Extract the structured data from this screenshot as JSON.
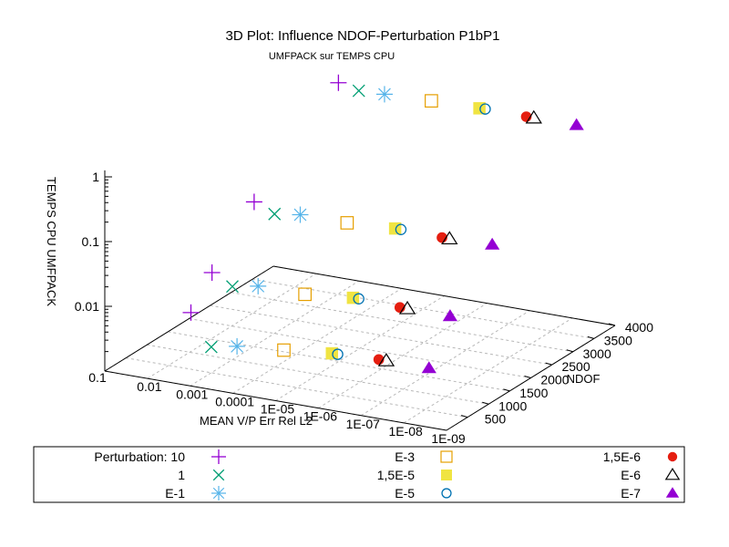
{
  "chart_data": {
    "type": "scatter",
    "title": "3D Plot: Influence NDOF-Perturbation P1bP1",
    "subtitle": "UMFPACK sur TEMPS CPU",
    "xlabel": "MEAN V/P Err Rel L2",
    "ylabel": "NDOF",
    "zlabel": "TEMPS CPU UMFPACK",
    "x_scale": "log",
    "x_ticks": [
      "0.1",
      "0.01",
      "0.001",
      "0.0001",
      "1E-05",
      "1E-06",
      "1E-07",
      "1E-08",
      "1E-09"
    ],
    "y_ticks": [
      "500",
      "1000",
      "1500",
      "2000",
      "2500",
      "3000",
      "3500",
      "4000"
    ],
    "z_scale": "log",
    "z_ticks": [
      "0.01",
      "0.1",
      "1"
    ],
    "legend_title": "Perturbation: 10",
    "grid": true,
    "legend_position": "bottom",
    "series": [
      {
        "name": "Perturbation: 10",
        "marker": "plus",
        "color": "#9400d3",
        "points": [
          {
            "x": 0.003,
            "ndof": 4000,
            "cpu": 1.02
          },
          {
            "x": 0.003,
            "ndof": 2000,
            "cpu": 0.095
          },
          {
            "x": 0.003,
            "ndof": 1000,
            "cpu": 0.0195
          },
          {
            "x": 0.003,
            "ndof": 500,
            "cpu": 0.0075
          }
        ]
      },
      {
        "name": "1",
        "marker": "cross",
        "color": "#009e73",
        "points": [
          {
            "x": 0.001,
            "ndof": 4000,
            "cpu": 0.87
          },
          {
            "x": 0.001,
            "ndof": 2000,
            "cpu": 0.07
          },
          {
            "x": 0.001,
            "ndof": 1000,
            "cpu": 0.0135
          },
          {
            "x": 0.001,
            "ndof": 500,
            "cpu": 0.0025
          }
        ]
      },
      {
        "name": "E-1",
        "marker": "star",
        "color": "#56b4e9",
        "points": [
          {
            "x": 0.00025,
            "ndof": 4000,
            "cpu": 0.9
          },
          {
            "x": 0.00025,
            "ndof": 2000,
            "cpu": 0.08
          },
          {
            "x": 0.00025,
            "ndof": 1000,
            "cpu": 0.016
          },
          {
            "x": 0.00025,
            "ndof": 500,
            "cpu": 0.003
          }
        ]
      },
      {
        "name": "E-3",
        "marker": "open-square",
        "color": "#e69f00",
        "points": [
          {
            "x": 2e-05,
            "ndof": 4000,
            "cpu": 0.95
          },
          {
            "x": 2e-05,
            "ndof": 2000,
            "cpu": 0.08
          },
          {
            "x": 2e-05,
            "ndof": 1000,
            "cpu": 0.016
          },
          {
            "x": 2e-05,
            "ndof": 500,
            "cpu": 0.0035
          }
        ]
      },
      {
        "name": "1,5E-5",
        "marker": "filled-square",
        "color": "#f0e442",
        "points": [
          {
            "x": 1.5e-06,
            "ndof": 4000,
            "cpu": 0.98
          },
          {
            "x": 1.5e-06,
            "ndof": 2000,
            "cpu": 0.088
          },
          {
            "x": 1.5e-06,
            "ndof": 1000,
            "cpu": 0.019
          },
          {
            "x": 1.5e-06,
            "ndof": 500,
            "cpu": 0.0042
          }
        ]
      },
      {
        "name": "E-5",
        "marker": "open-circle",
        "color": "#0072b2",
        "points": [
          {
            "x": 1.1e-06,
            "ndof": 4000,
            "cpu": 0.99
          },
          {
            "x": 1.1e-06,
            "ndof": 2000,
            "cpu": 0.088
          },
          {
            "x": 1.1e-06,
            "ndof": 1000,
            "cpu": 0.019
          },
          {
            "x": 1.1e-06,
            "ndof": 500,
            "cpu": 0.0042
          }
        ]
      },
      {
        "name": "1,5E-6",
        "marker": "filled-circle",
        "color": "#e51e10",
        "points": [
          {
            "x": 1.2e-07,
            "ndof": 4000,
            "cpu": 0.97
          },
          {
            "x": 1.2e-07,
            "ndof": 2000,
            "cpu": 0.085
          },
          {
            "x": 1.2e-07,
            "ndof": 1000,
            "cpu": 0.018
          },
          {
            "x": 1.2e-07,
            "ndof": 500,
            "cpu": 0.0045
          }
        ]
      },
      {
        "name": "E-6",
        "marker": "open-triangle",
        "color": "#000000",
        "points": [
          {
            "x": 8e-08,
            "ndof": 4000,
            "cpu": 0.97
          },
          {
            "x": 8e-08,
            "ndof": 2000,
            "cpu": 0.085
          },
          {
            "x": 8e-08,
            "ndof": 1000,
            "cpu": 0.018
          },
          {
            "x": 8e-08,
            "ndof": 500,
            "cpu": 0.0045
          }
        ]
      },
      {
        "name": "E-7",
        "marker": "filled-triangle",
        "color": "#9400d3",
        "points": [
          {
            "x": 8e-09,
            "ndof": 4000,
            "cpu": 0.98
          },
          {
            "x": 8e-09,
            "ndof": 2000,
            "cpu": 0.09
          },
          {
            "x": 8e-09,
            "ndof": 1000,
            "cpu": 0.018
          },
          {
            "x": 8e-09,
            "ndof": 500,
            "cpu": 0.0045
          }
        ]
      }
    ]
  }
}
